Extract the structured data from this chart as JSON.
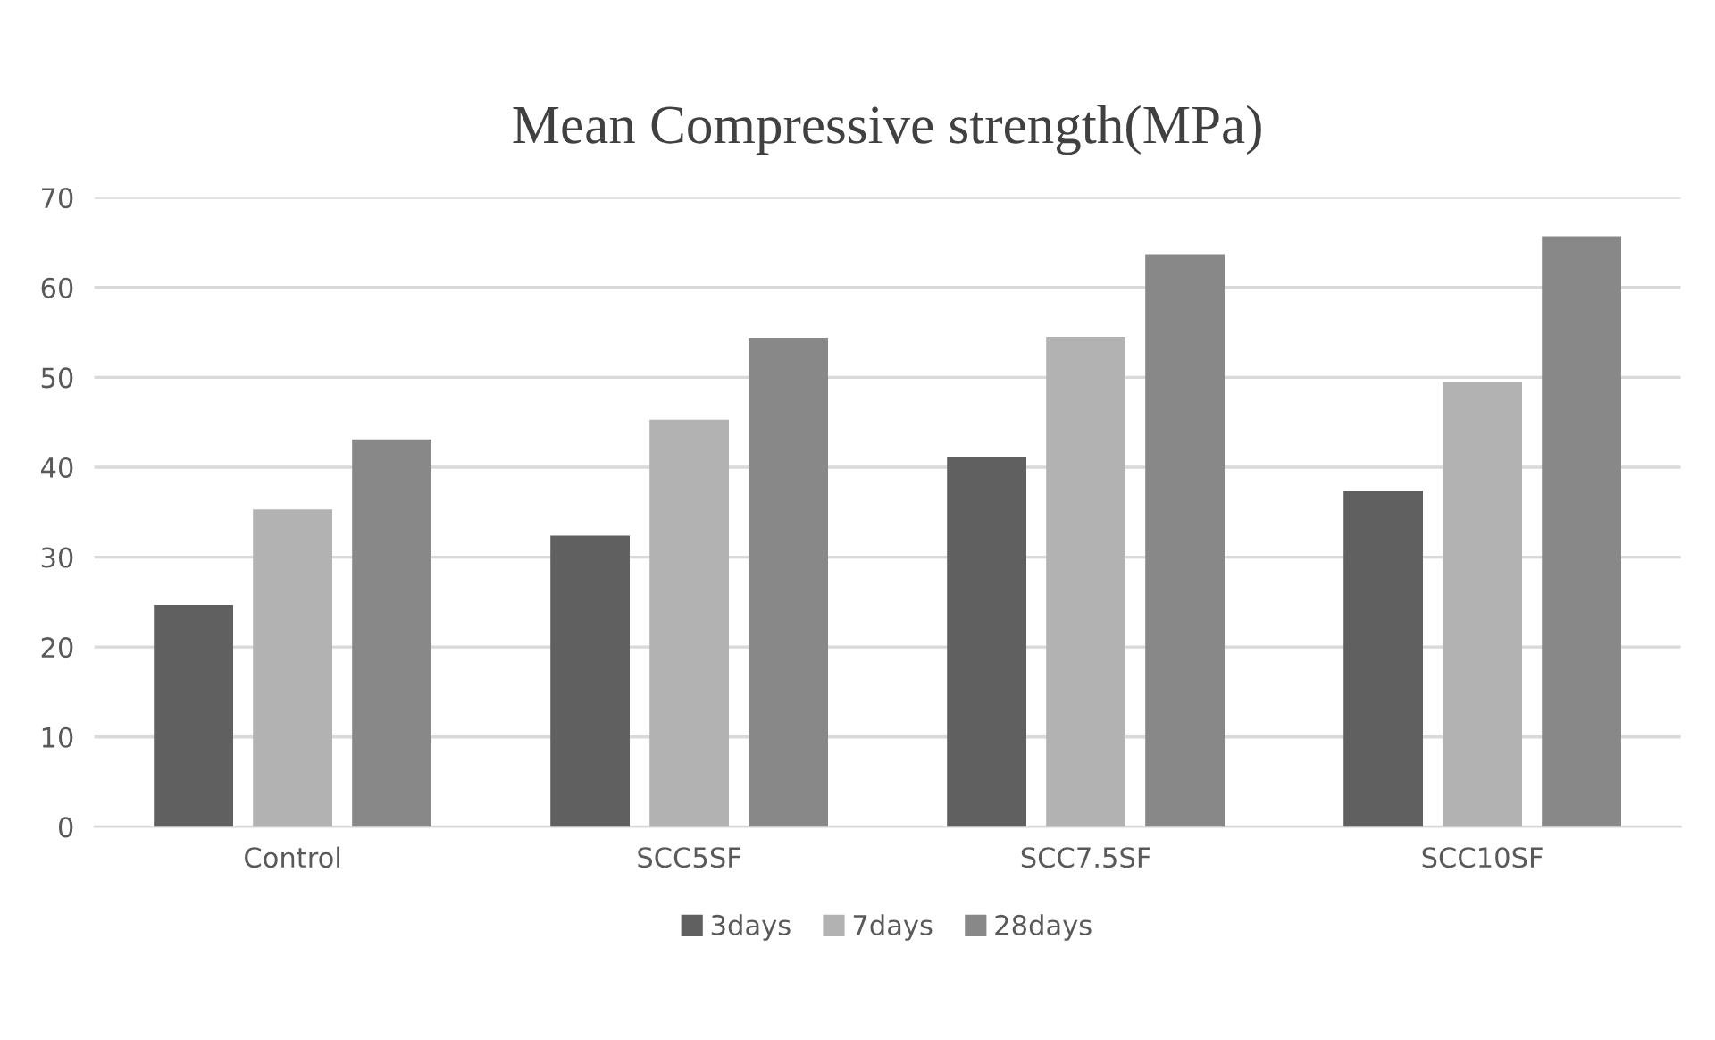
{
  "chart_data": {
    "type": "bar",
    "title": "Mean Compressive strength(MPa)",
    "categories": [
      "Control",
      "SCC5SF",
      "SCC7.5SF",
      "SCC10SF"
    ],
    "series": [
      {
        "name": "3days",
        "color": "#606060",
        "values": [
          24.7,
          32.4,
          41.1,
          37.4
        ]
      },
      {
        "name": "7days",
        "color": "#b2b2b2",
        "values": [
          35.3,
          45.3,
          54.5,
          49.5
        ]
      },
      {
        "name": "28days",
        "color": "#888888",
        "values": [
          43.1,
          54.4,
          63.7,
          65.7
        ]
      }
    ],
    "ylim": [
      0,
      70
    ],
    "yticks": [
      0,
      10,
      20,
      30,
      40,
      50,
      60,
      70
    ],
    "grid": "y",
    "legend": "bottom"
  }
}
